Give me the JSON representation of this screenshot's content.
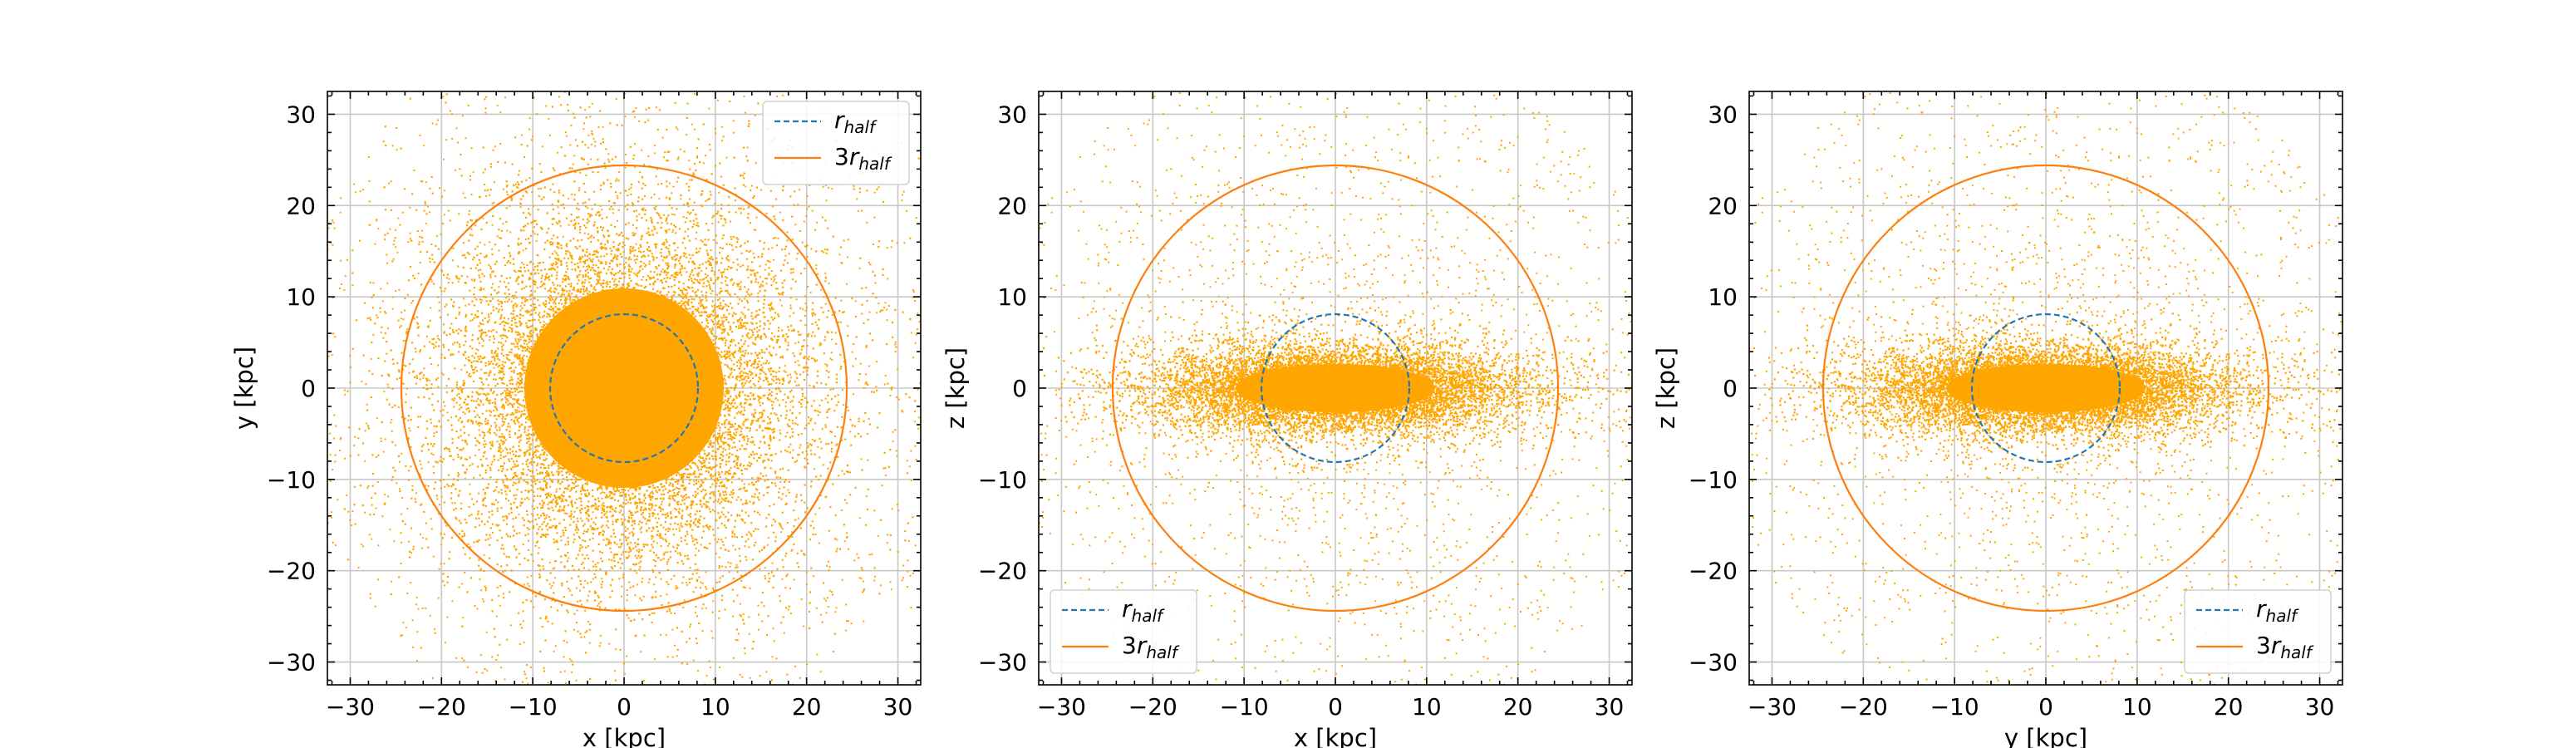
{
  "chart_data": [
    {
      "type": "scatter",
      "xlabel": "x [kpc]",
      "ylabel": "y [kpc]",
      "xlim": [
        -32.5,
        32.5
      ],
      "ylim": [
        -32.5,
        32.5
      ],
      "xticks": [
        -30,
        -20,
        -10,
        0,
        10,
        20,
        30
      ],
      "yticks": [
        -30,
        -20,
        -10,
        0,
        10,
        20,
        30
      ],
      "xtick_labels": [
        "−30",
        "−20",
        "−10",
        "0",
        "10",
        "20",
        "30"
      ],
      "ytick_labels": [
        "−30",
        "−20",
        "−10",
        "0",
        "10",
        "20",
        "30"
      ],
      "grid": true,
      "legend_position": "upper right",
      "legend": [
        "rhalf",
        "3rhalf"
      ],
      "particles": {
        "color": "#ffa500",
        "scale_major_kpc": 9.5,
        "scale_minor_kpc": 9.5
      },
      "circles": [
        {
          "name": "rhalf",
          "radius": 8.1,
          "color": "#1f77b4",
          "style": "dashed"
        },
        {
          "name": "3rhalf",
          "radius": 24.4,
          "color": "#ff7f0e",
          "style": "solid"
        }
      ]
    },
    {
      "type": "scatter",
      "xlabel": "x [kpc]",
      "ylabel": "z [kpc]",
      "xlim": [
        -32.5,
        32.5
      ],
      "ylim": [
        -32.5,
        32.5
      ],
      "xticks": [
        -30,
        -20,
        -10,
        0,
        10,
        20,
        30
      ],
      "yticks": [
        -30,
        -20,
        -10,
        0,
        10,
        20,
        30
      ],
      "xtick_labels": [
        "−30",
        "−20",
        "−10",
        "0",
        "10",
        "20",
        "30"
      ],
      "ytick_labels": [
        "−30",
        "−20",
        "−10",
        "0",
        "10",
        "20",
        "30"
      ],
      "grid": true,
      "legend_position": "lower left",
      "legend": [
        "rhalf",
        "3rhalf"
      ],
      "particles": {
        "color": "#ffa500",
        "scale_major_kpc": 9.5,
        "scale_minor_kpc": 2.3
      },
      "circles": [
        {
          "name": "rhalf",
          "radius": 8.1,
          "color": "#1f77b4",
          "style": "dashed"
        },
        {
          "name": "3rhalf",
          "radius": 24.4,
          "color": "#ff7f0e",
          "style": "solid"
        }
      ]
    },
    {
      "type": "scatter",
      "xlabel": "y [kpc]",
      "ylabel": "z [kpc]",
      "xlim": [
        -32.5,
        32.5
      ],
      "ylim": [
        -32.5,
        32.5
      ],
      "xticks": [
        -30,
        -20,
        -10,
        0,
        10,
        20,
        30
      ],
      "yticks": [
        -30,
        -20,
        -10,
        0,
        10,
        20,
        30
      ],
      "xtick_labels": [
        "−30",
        "−20",
        "−10",
        "0",
        "10",
        "20",
        "30"
      ],
      "ytick_labels": [
        "−30",
        "−20",
        "−10",
        "0",
        "10",
        "20",
        "30"
      ],
      "grid": true,
      "legend_position": "lower right",
      "legend": [
        "rhalf",
        "3rhalf"
      ],
      "particles": {
        "color": "#ffa500",
        "scale_major_kpc": 9.5,
        "scale_minor_kpc": 2.3
      },
      "circles": [
        {
          "name": "rhalf",
          "radius": 8.1,
          "color": "#1f77b4",
          "style": "dashed"
        },
        {
          "name": "3rhalf",
          "radius": 24.4,
          "color": "#ff7f0e",
          "style": "solid"
        }
      ]
    }
  ]
}
